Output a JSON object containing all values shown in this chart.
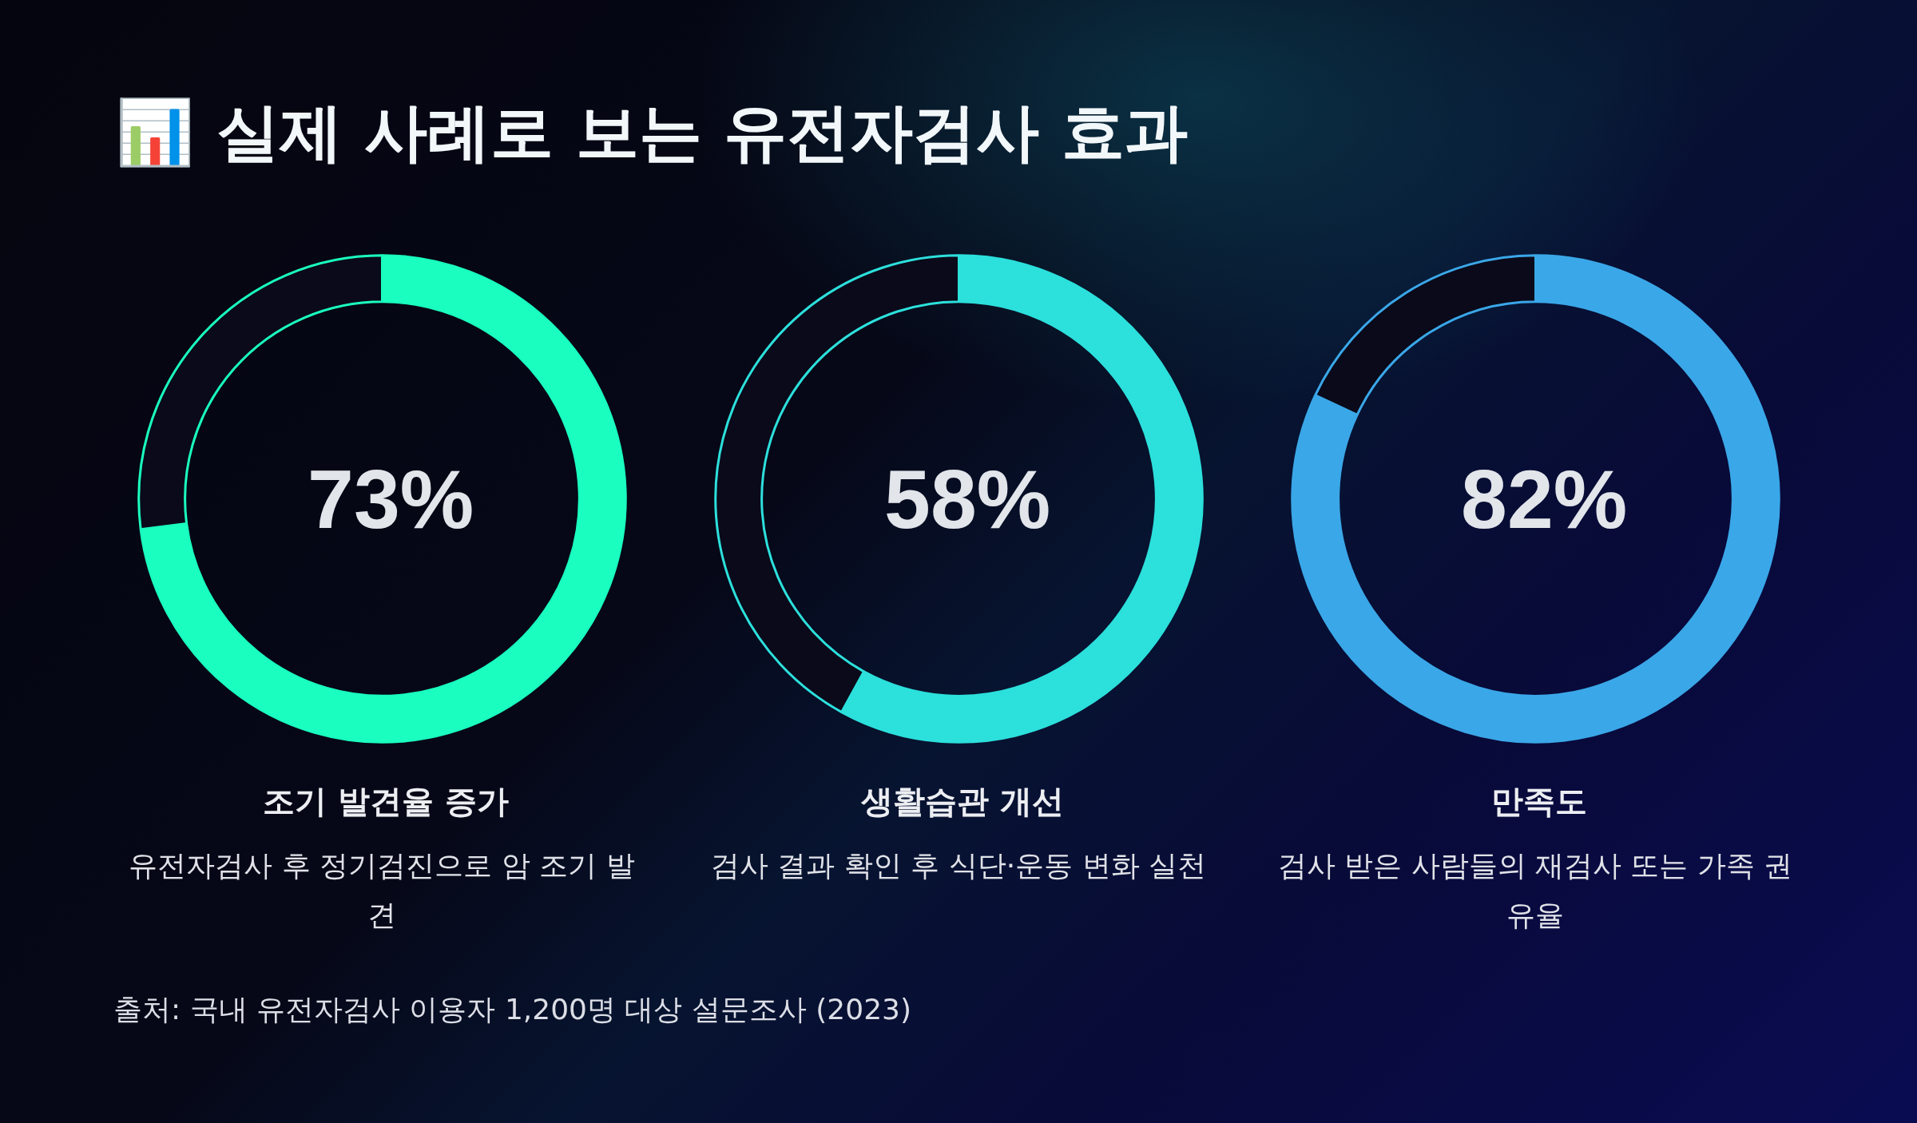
{
  "chart_data": [
    {
      "type": "other",
      "title": "📊 실제 사례로 보는 유전자검사 효과",
      "annotations": [
        "출처: 국내 유전자검사 이용자 1,200명 대상 설문조사 (2023)"
      ]
    },
    {
      "type": "donut",
      "title": "조기 발견율 증가",
      "subtitle": "유전자검사 후 정기검진으로 암 조기 발견",
      "categories": [
        null,
        null
      ],
      "values": [
        73,
        27
      ],
      "colors": [
        "#1affbf",
        "#0a0a1a"
      ],
      "value_labels": [
        "73%",
        null
      ]
    },
    {
      "type": "donut",
      "title": "생활습관 개선",
      "subtitle": "검사 결과 확인 후 식단·운동 변화 실천",
      "categories": [
        null,
        null
      ],
      "values": [
        58,
        42
      ],
      "colors": [
        "#2ce0dc",
        "#0a0a1a"
      ],
      "value_labels": [
        "58%",
        null
      ]
    },
    {
      "type": "donut",
      "title": "만족도",
      "subtitle": "검사 받은 사람들의 재검사 또는 가족 권유율",
      "categories": [
        null,
        null
      ],
      "values": [
        82,
        18
      ],
      "colors": [
        "#3aa7e8",
        "#0a0a1a"
      ],
      "value_labels": [
        "82%",
        null
      ]
    }
  ]
}
